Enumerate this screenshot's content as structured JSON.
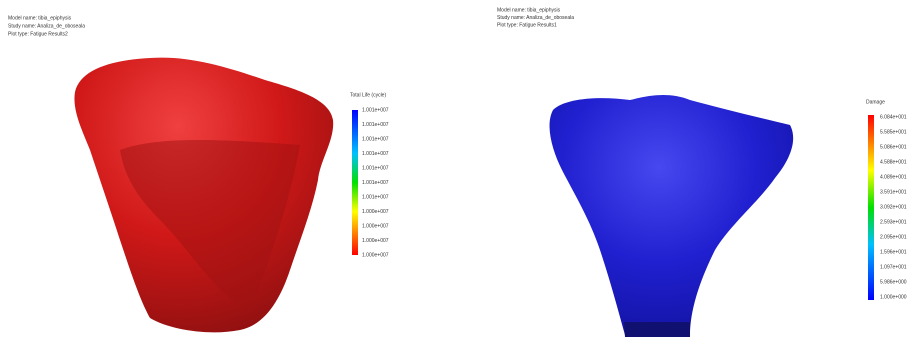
{
  "panels": [
    {
      "header": [
        "Model name: tibia_epiphysis",
        "Study name: Analiza_de_oboseala",
        "Plot type: Fatigue Results2"
      ],
      "legend": {
        "title": "Total Life (cycle)",
        "labels": [
          "1.001e+007",
          "1.001e+007",
          "1.001e+007",
          "1.001e+007",
          "1.001e+007",
          "1.001e+007",
          "1.001e+007",
          "1.000e+007",
          "1.000e+007",
          "1.000e+007",
          "1.000e+007"
        ]
      }
    },
    {
      "header": [
        "Model name: tibia_epiphysis",
        "Study name: Analiza_de_oboseala",
        "Plot type: Fatigue Results1"
      ],
      "legend": {
        "title": "Damage",
        "labels": [
          "6.084e+001",
          "5.585e+001",
          "5.086e+001",
          "4.588e+001",
          "4.089e+001",
          "3.591e+001",
          "3.092e+001",
          "2.593e+001",
          "2.095e+001",
          "1.596e+001",
          "1.097e+001",
          "5.986e+000",
          "1.000e+000"
        ]
      }
    }
  ]
}
